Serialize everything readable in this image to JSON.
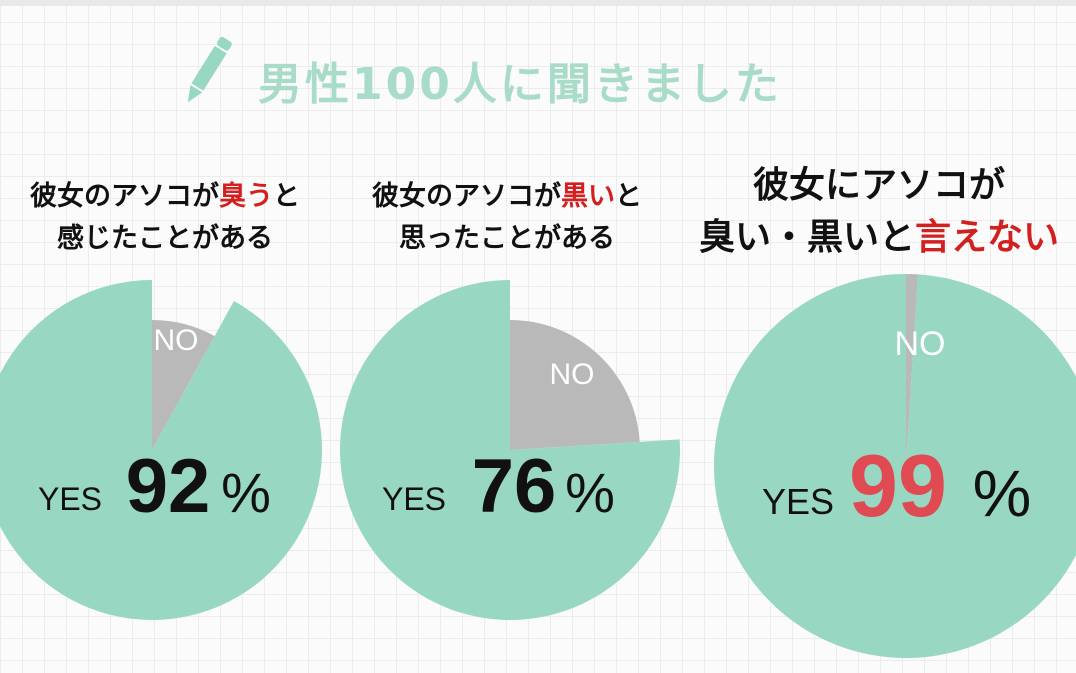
{
  "title": "男性100人に聞きました",
  "colors": {
    "yes": "#98d7c2",
    "no": "#b9b9b9",
    "accent": "#d21f1f",
    "pct_red": "#e04a52",
    "title": "#a9dcc8"
  },
  "icons": {
    "header": "pencil-icon"
  },
  "questions": [
    {
      "pre": "彼女のアソコが",
      "em": "臭う",
      "post": "と",
      "line2": "感じたことがある"
    },
    {
      "pre": "彼女のアソコが",
      "em": "黒い",
      "post": "と",
      "line2": "思ったことがある"
    },
    {
      "line1": "彼女にアソコが",
      "line2_pre": "臭い・黒いと",
      "em": "言えない"
    }
  ],
  "chart_data": [
    {
      "type": "pie",
      "title": "彼女のアソコが臭うと感じたことがある",
      "categories": [
        "YES",
        "NO"
      ],
      "values": [
        92,
        8
      ],
      "yes_label": "YES",
      "no_label": "NO",
      "pct_value": "92",
      "pct_sign": "%"
    },
    {
      "type": "pie",
      "title": "彼女のアソコが黒いと思ったことがある",
      "categories": [
        "YES",
        "NO"
      ],
      "values": [
        76,
        24
      ],
      "yes_label": "YES",
      "no_label": "NO",
      "pct_value": "76",
      "pct_sign": "%"
    },
    {
      "type": "pie",
      "title": "彼女にアソコが臭い・黒いと言えない",
      "categories": [
        "YES",
        "NO"
      ],
      "values": [
        99,
        1
      ],
      "yes_label": "YES",
      "no_label": "NO",
      "pct_value": "99",
      "pct_sign": "%"
    }
  ]
}
